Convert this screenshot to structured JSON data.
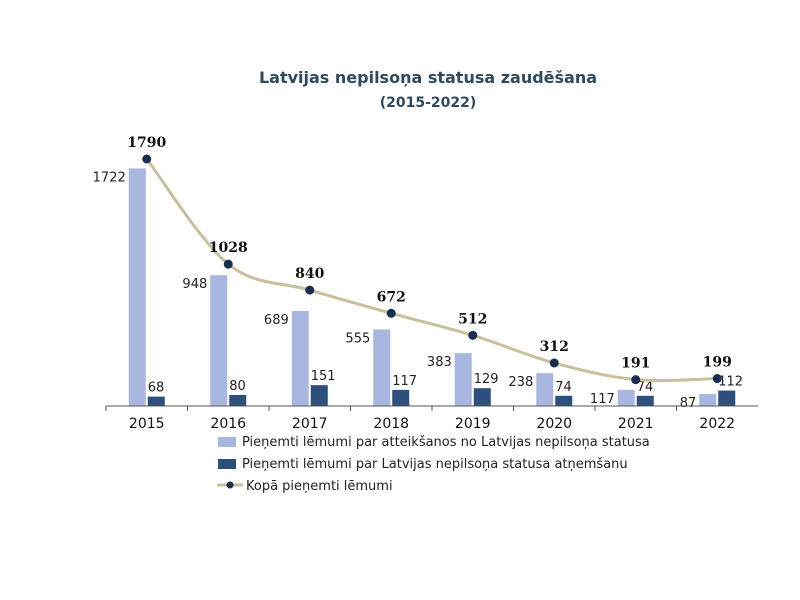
{
  "chart_data": {
    "type": "bar",
    "title": "Latvijas nepilsoņa statusa zaudēšana",
    "subtitle": "(2015-2022)",
    "categories": [
      "2015",
      "2016",
      "2017",
      "2018",
      "2019",
      "2020",
      "2021",
      "2022"
    ],
    "series": [
      {
        "name": "Pieņemti lēmumi par atteikšanos no Latvijas nepilsoņa statusa",
        "kind": "bar",
        "color": "#a9b7e0",
        "values": [
          1722,
          948,
          689,
          555,
          383,
          238,
          117,
          87
        ]
      },
      {
        "name": "Pieņemti lēmumi par Latvijas nepilsoņa statusa atņemšanu",
        "kind": "bar",
        "color": "#2d4f7c",
        "values": [
          68,
          80,
          151,
          117,
          129,
          74,
          74,
          112
        ]
      },
      {
        "name": "Kopā pieņemti lēmumi",
        "kind": "line",
        "color": "#c8c09a",
        "marker_color": "#1a2e52",
        "values": [
          1790,
          1028,
          840,
          672,
          512,
          312,
          191,
          199
        ]
      }
    ],
    "ylim": [
      0,
      1900
    ],
    "grid": false,
    "legend_position": "bottom"
  }
}
